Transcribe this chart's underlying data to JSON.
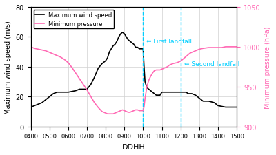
{
  "xlabel": "DDHH",
  "ylabel_left": "Maximum wind speed (m/s)",
  "ylabel_right": "Minimum pressure (hPa)",
  "xlim": [
    400,
    1500
  ],
  "ylim_left": [
    0,
    80
  ],
  "ylim_right": [
    900,
    1050
  ],
  "xticks": [
    400,
    500,
    600,
    700,
    800,
    900,
    1000,
    1100,
    1200,
    1300,
    1400,
    1500
  ],
  "xticklabels": [
    "0400",
    "0500",
    "0600",
    "0700",
    "0800",
    "0900",
    "1000",
    "1100",
    "1200",
    "1300",
    "1400",
    "1500"
  ],
  "yticks_left": [
    0,
    20,
    40,
    60,
    80
  ],
  "yticks_right": [
    900,
    950,
    1000,
    1050
  ],
  "vline1_x": 1000,
  "vline2_x": 1200,
  "vline_color": "#00CFFF",
  "landfall1_label": "<= First landfall",
  "landfall2_label": "<= Second landfall",
  "legend_wind": "Maximum wind speed",
  "legend_pressure": "Minimum pressure",
  "wind_color": "#000000",
  "pressure_color": "#FF69B4",
  "background_color": "#ffffff",
  "grid_color": "#d0d0d0",
  "wind_x": [
    400,
    420,
    440,
    460,
    480,
    500,
    520,
    540,
    560,
    580,
    600,
    620,
    640,
    660,
    680,
    700,
    720,
    740,
    760,
    780,
    800,
    810,
    820,
    830,
    840,
    850,
    860,
    870,
    880,
    890,
    900,
    910,
    920,
    930,
    940,
    950,
    960,
    970,
    980,
    990,
    1000,
    1005,
    1010,
    1020,
    1030,
    1040,
    1050,
    1060,
    1070,
    1080,
    1090,
    1100,
    1110,
    1120,
    1130,
    1140,
    1150,
    1160,
    1180,
    1200,
    1210,
    1220,
    1230,
    1240,
    1250,
    1260,
    1280,
    1300,
    1320,
    1350,
    1380,
    1400,
    1420,
    1440,
    1460,
    1480,
    1500
  ],
  "wind_y": [
    13,
    14,
    15,
    16,
    18,
    20,
    22,
    23,
    23,
    23,
    23,
    23.5,
    24,
    25,
    25,
    25,
    28,
    33,
    39,
    42,
    44,
    46,
    50,
    52,
    54,
    55,
    57,
    60,
    62,
    63,
    62,
    60,
    58,
    57,
    56,
    55,
    53,
    53,
    52,
    52,
    52,
    40,
    30,
    26,
    25,
    24,
    23,
    22,
    21,
    21,
    21,
    23,
    23,
    23,
    23,
    23,
    23,
    23,
    23,
    23,
    23,
    23,
    23,
    22,
    22,
    22,
    21,
    19,
    17,
    17,
    16,
    14,
    13.5,
    13,
    13,
    13,
    13
  ],
  "pressure_x": [
    400,
    420,
    440,
    460,
    480,
    500,
    520,
    540,
    560,
    580,
    600,
    620,
    640,
    660,
    680,
    700,
    720,
    740,
    760,
    780,
    800,
    810,
    820,
    830,
    840,
    850,
    860,
    870,
    880,
    890,
    900,
    910,
    920,
    930,
    940,
    950,
    960,
    970,
    980,
    990,
    1000,
    1005,
    1010,
    1020,
    1030,
    1040,
    1050,
    1060,
    1070,
    1080,
    1090,
    1100,
    1110,
    1120,
    1130,
    1140,
    1150,
    1160,
    1180,
    1200,
    1210,
    1220,
    1230,
    1240,
    1250,
    1260,
    1280,
    1300,
    1320,
    1350,
    1380,
    1400,
    1420,
    1440,
    1460,
    1480,
    1500
  ],
  "pressure_y": [
    1000,
    998,
    997,
    996,
    995,
    993,
    991,
    989,
    987,
    984,
    980,
    974,
    967,
    960,
    953,
    946,
    938,
    930,
    924,
    919,
    917,
    916,
    916,
    916,
    916,
    917,
    918,
    919,
    920,
    921,
    920,
    919,
    918,
    918,
    919,
    920,
    921,
    921,
    920,
    920,
    920,
    925,
    935,
    950,
    958,
    963,
    967,
    970,
    971,
    971,
    971,
    972,
    973,
    974,
    975,
    977,
    978,
    979,
    980,
    982,
    984,
    986,
    988,
    990,
    992,
    993,
    995,
    997,
    998,
    999,
    999,
    999,
    999,
    1000,
    1000,
    1000,
    1000
  ]
}
